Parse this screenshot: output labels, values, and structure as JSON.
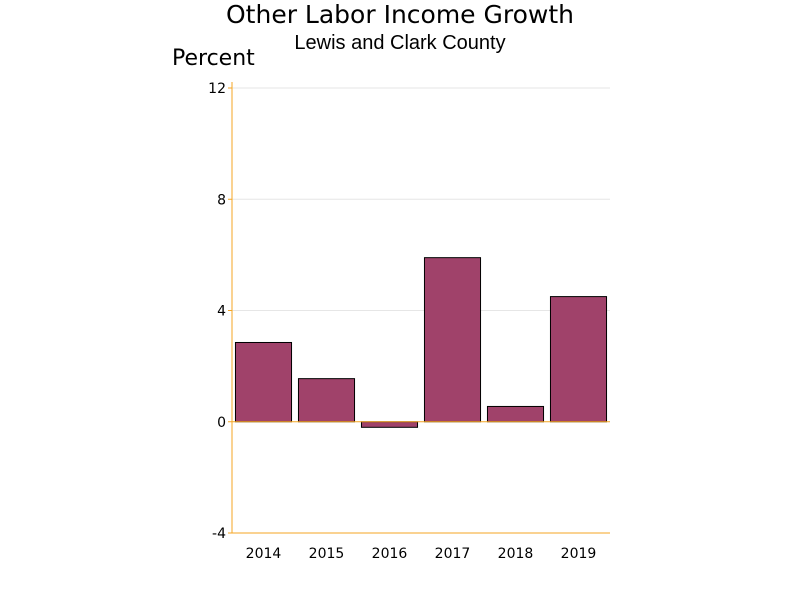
{
  "chart_data": {
    "type": "bar",
    "title": "Other Labor Income Growth",
    "subtitle": "Lewis and Clark County",
    "ylabel": "Percent",
    "xlabel": "",
    "categories": [
      "2014",
      "2015",
      "2016",
      "2017",
      "2018",
      "2019"
    ],
    "values": [
      2.85,
      1.55,
      -0.2,
      5.9,
      0.55,
      4.5
    ],
    "ylim": [
      -4,
      12
    ],
    "yticks": [
      -4,
      0,
      4,
      8,
      12
    ],
    "grid": true,
    "bar_color": "#a0426a",
    "axis_color": "#f5a623"
  }
}
